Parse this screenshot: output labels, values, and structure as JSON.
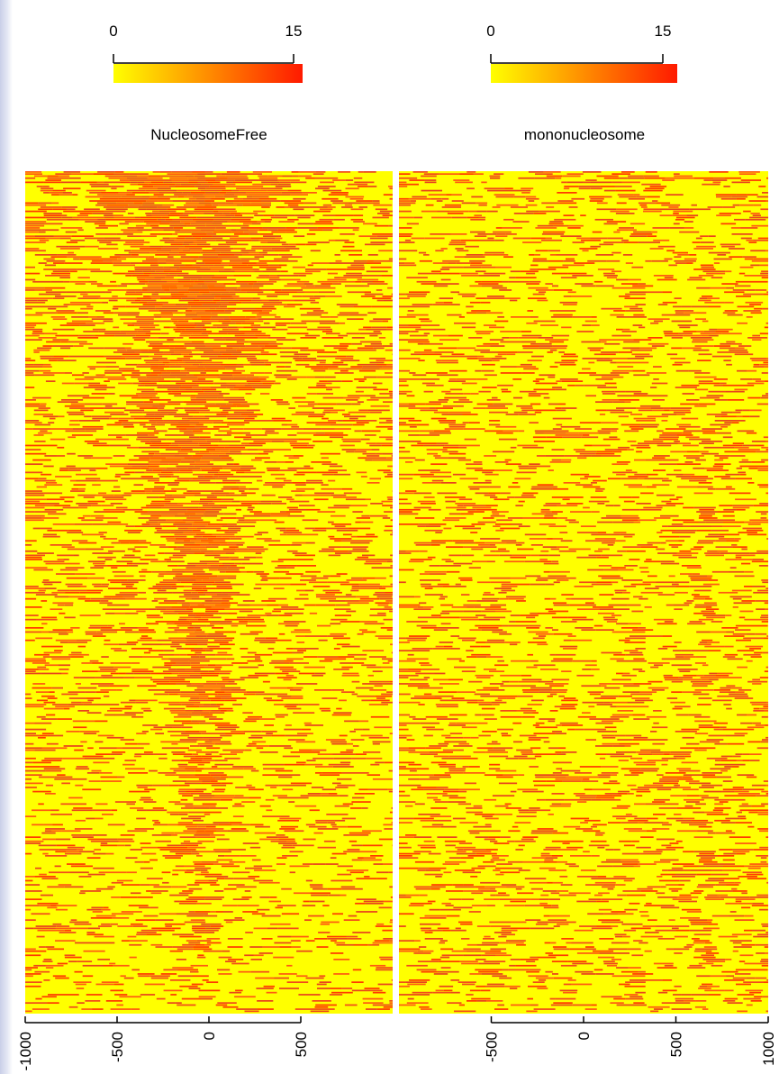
{
  "chart_data": {
    "type": "heatmap",
    "color_scale": {
      "min": 0,
      "max": 15,
      "low_color": "#ffff00",
      "high_color": "#ff1a00",
      "tick_labels": [
        "0",
        "15"
      ]
    },
    "panels": [
      {
        "title": "NucleosomeFree",
        "x_range": [
          -1000,
          1000
        ],
        "x_tick_values": [
          -1000,
          -500,
          0,
          500
        ],
        "x_tick_labels": [
          "-1000",
          "-500",
          "0",
          "500"
        ],
        "pattern": "strong signal centered near 0 (TSS), widest near the top rows and narrowing toward the bottom rows",
        "center_signal_by_row_fraction": [
          {
            "row_fraction": 0.0,
            "half_width": 600,
            "density": 0.95
          },
          {
            "row_fraction": 0.25,
            "half_width": 350,
            "density": 0.85
          },
          {
            "row_fraction": 0.5,
            "half_width": 220,
            "density": 0.8
          },
          {
            "row_fraction": 0.75,
            "half_width": 150,
            "density": 0.7
          },
          {
            "row_fraction": 1.0,
            "half_width": 60,
            "density": 0.3
          }
        ]
      },
      {
        "title": "mononucleosome",
        "x_range": [
          -1000,
          1000
        ],
        "x_tick_values": [
          -500,
          0,
          500,
          1000
        ],
        "x_tick_labels": [
          "-500",
          "0",
          "500",
          "1000"
        ],
        "pattern": "weak, diffuse signal distributed roughly uniformly across positions, slight depletion at 0"
      }
    ]
  }
}
